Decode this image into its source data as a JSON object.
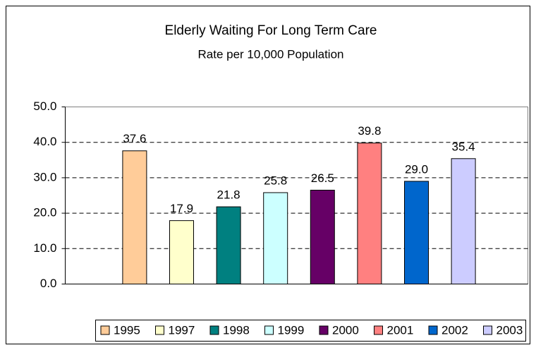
{
  "chart_data": {
    "type": "bar",
    "title": "Elderly Waiting For Long Term Care",
    "subtitle": "Rate per 10,000 Population",
    "categories": [
      null
    ],
    "series": [
      {
        "name": "1995",
        "color": "#ffcc99",
        "values": [
          37.6
        ],
        "value_labels": [
          "37.6"
        ]
      },
      {
        "name": "1997",
        "color": "#ffffcc",
        "values": [
          17.9
        ],
        "value_labels": [
          "17.9"
        ]
      },
      {
        "name": "1998",
        "color": "#008080",
        "values": [
          21.8
        ],
        "value_labels": [
          "21.8"
        ]
      },
      {
        "name": "1999",
        "color": "#ccffff",
        "values": [
          25.8
        ],
        "value_labels": [
          "25.8"
        ]
      },
      {
        "name": "2000",
        "color": "#660066",
        "values": [
          26.5
        ],
        "value_labels": [
          "26.5"
        ]
      },
      {
        "name": "2001",
        "color": "#ff8080",
        "values": [
          39.8
        ],
        "value_labels": [
          "39.8"
        ]
      },
      {
        "name": "2002",
        "color": "#0066cc",
        "values": [
          29.0
        ],
        "value_labels": [
          "29.0"
        ]
      },
      {
        "name": "2003",
        "color": "#ccccff",
        "values": [
          35.4
        ],
        "value_labels": [
          "35.4"
        ]
      }
    ],
    "ylim": [
      0,
      50
    ],
    "yticks": [
      {
        "value": 0,
        "label": "0.0"
      },
      {
        "value": 10,
        "label": "10.0"
      },
      {
        "value": 20,
        "label": "20.0"
      },
      {
        "value": 30,
        "label": "30.0"
      },
      {
        "value": 40,
        "label": "40.0"
      },
      {
        "value": 50,
        "label": "50.0"
      }
    ],
    "grid": true,
    "legend": "bottom"
  }
}
